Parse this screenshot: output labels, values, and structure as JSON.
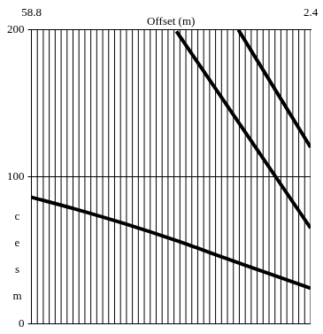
{
  "chart_data": {
    "type": "line",
    "xlabel": "Offset (m)",
    "ylabel": "msec",
    "xlim": [
      58.8,
      2.4
    ],
    "xticks": [
      58.8,
      2.4
    ],
    "ylim": [
      200,
      0
    ],
    "yticks": [
      0,
      100,
      200
    ],
    "grid": true,
    "traces": [
      2.4,
      3.6,
      4.8,
      6,
      7.2,
      8.4,
      9.6,
      10.8,
      12,
      13.2,
      14.4,
      15.6,
      16.8,
      18,
      19.2,
      20.4,
      21.6,
      22.8,
      24,
      25.2,
      26.4,
      27.6,
      28.8,
      30,
      31.2,
      32.4,
      33.6,
      34.8,
      36,
      37.2,
      38.4,
      39.6,
      40.8,
      42,
      43.2,
      44.4,
      45.6,
      46.8,
      48,
      49.2,
      50.4,
      51.6,
      52.8,
      54,
      55.2,
      56.4,
      57.6,
      58.8
    ],
    "series": [
      {
        "color": "#000000",
        "x": [
          2.4,
          10,
          20,
          30,
          40,
          50,
          58.8
        ],
        "values": [
          24,
          33,
          45,
          57,
          68,
          78,
          86
        ]
      },
      {
        "color": "#000000",
        "x": [
          2.4,
          29.5
        ],
        "values": [
          65,
          199
        ]
      },
      {
        "color": "#000000",
        "x": [
          2.4,
          17
        ],
        "values": [
          120,
          200
        ]
      }
    ]
  }
}
